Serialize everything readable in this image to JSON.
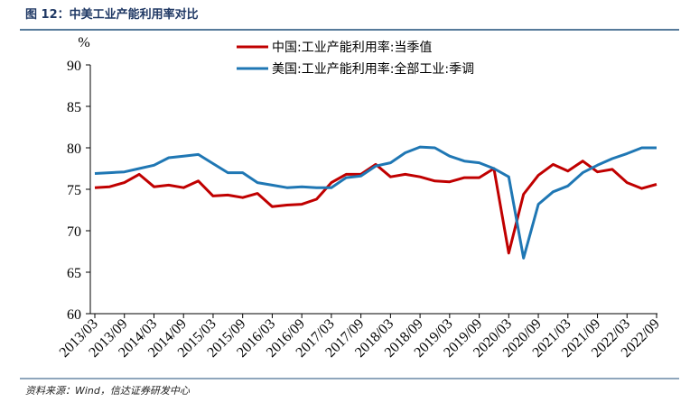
{
  "header": {
    "title": "图 12：中美工业产能利用率对比"
  },
  "chart_data": {
    "type": "line",
    "y_label": "%",
    "categories": [
      "2013/03",
      null,
      "2013/09",
      null,
      "2014/03",
      null,
      "2014/09",
      null,
      "2015/03",
      null,
      "2015/09",
      null,
      "2016/03",
      null,
      "2016/09",
      null,
      "2017/03",
      null,
      "2017/09",
      null,
      "2018/03",
      null,
      "2018/09",
      null,
      "2019/03",
      null,
      "2019/09",
      null,
      "2020/03",
      null,
      "2020/09",
      null,
      "2021/03",
      null,
      "2021/09",
      null,
      "2022/03",
      null,
      "2022/09"
    ],
    "series": [
      {
        "name": "中国:工业产能利用率:当季值",
        "color": "#c00000",
        "values": [
          75.2,
          75.3,
          75.8,
          76.8,
          75.3,
          75.5,
          75.2,
          76.0,
          74.2,
          74.3,
          74.0,
          74.5,
          72.9,
          73.1,
          73.2,
          73.8,
          75.8,
          76.8,
          76.8,
          78.0,
          76.5,
          76.8,
          76.5,
          76.0,
          75.9,
          76.4,
          76.4,
          77.5,
          67.3,
          74.4,
          76.7,
          78.0,
          77.2,
          78.4,
          77.1,
          77.4,
          75.8,
          75.1,
          75.6
        ]
      },
      {
        "name": "美国:工业产能利用率:全部工业:季调",
        "color": "#1f77b4",
        "values": [
          76.9,
          77.0,
          77.1,
          77.5,
          77.9,
          78.8,
          79.0,
          79.2,
          78.1,
          77.0,
          77.0,
          75.8,
          75.5,
          75.2,
          75.3,
          75.2,
          75.2,
          76.4,
          76.6,
          77.8,
          78.2,
          79.4,
          80.1,
          80.0,
          79.0,
          78.4,
          78.2,
          77.5,
          76.5,
          66.7,
          73.2,
          74.7,
          75.4,
          77.0,
          77.9,
          78.7,
          79.3,
          80.0,
          80.0
        ]
      }
    ],
    "ylim": [
      60,
      90
    ],
    "yticks": [
      60,
      65,
      70,
      75,
      80,
      85,
      90
    ],
    "grid": false,
    "legend": "top"
  },
  "footer": {
    "source": "资料来源：Wind，信达证券研发中心"
  }
}
